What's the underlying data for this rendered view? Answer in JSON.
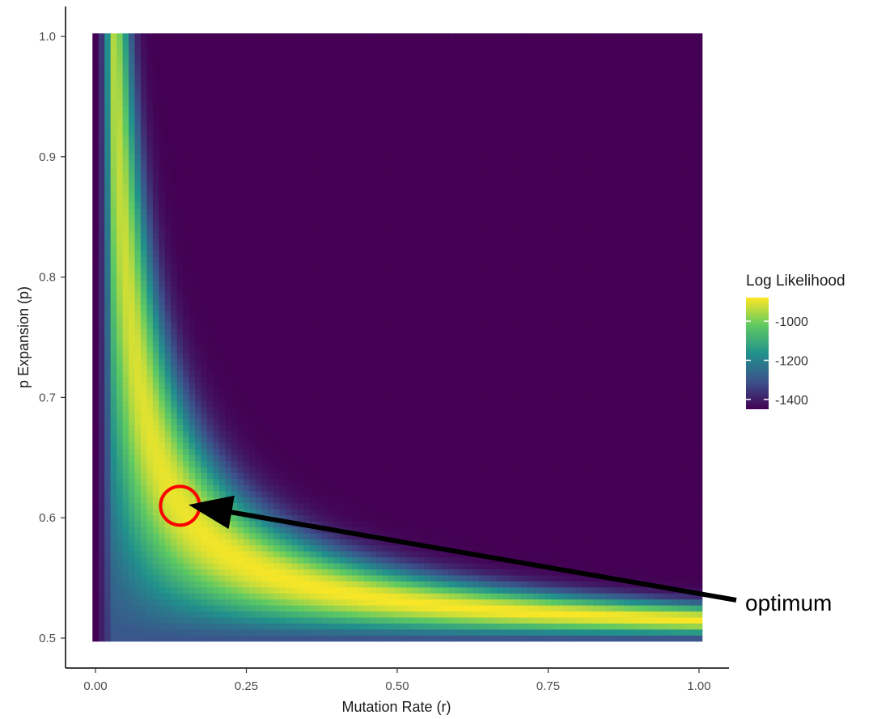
{
  "chart_data": {
    "type": "heatmap",
    "title": "",
    "xlabel": "Mutation Rate (r)",
    "ylabel": "p Expansion (p)",
    "xlim": [
      0,
      1
    ],
    "ylim": [
      0.5,
      1.0
    ],
    "x_ticks": [
      0.0,
      0.25,
      0.5,
      0.75,
      1.0
    ],
    "x_tick_labels": [
      "0.00",
      "0.25",
      "0.50",
      "0.75",
      "1.00"
    ],
    "y_ticks": [
      0.5,
      0.6,
      0.7,
      0.8,
      0.9,
      1.0
    ],
    "y_tick_labels": [
      "0.5",
      "0.6",
      "0.7",
      "0.8",
      "0.9",
      "1.0"
    ],
    "grid": false,
    "x_grid_step": 0.01,
    "y_grid_step": 0.005,
    "ridge_function": "p = 0.5 + 0.0155 / r",
    "ridge_width": 0.0095,
    "value_range": [
      -1450,
      -880
    ],
    "colorscale": "viridis",
    "legend": {
      "title": "Log Likelihood",
      "placement": "right",
      "ticks": [
        -1000,
        -1200,
        -1400
      ],
      "tick_labels": [
        "-1000",
        "-1200",
        "-1400"
      ]
    },
    "annotations": [
      {
        "label": "optimum",
        "x": 0.14,
        "y": 0.61,
        "marker": "red-circle",
        "arrow": true
      }
    ]
  }
}
